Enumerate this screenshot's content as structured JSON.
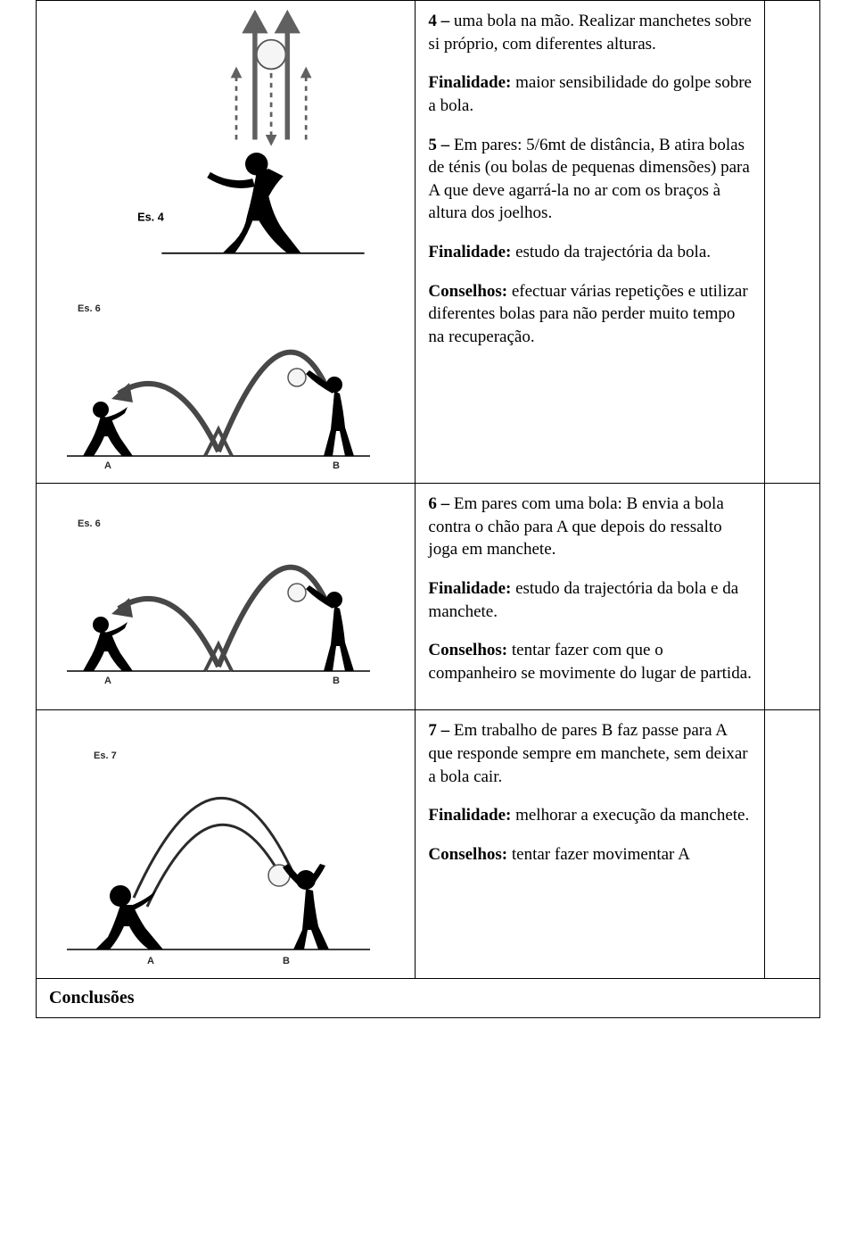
{
  "rows": [
    {
      "figures": [
        {
          "label": "Es. 4",
          "kind": "single-arrows"
        },
        {
          "label": "Es. 6",
          "kind": "pair-bounce"
        }
      ],
      "paragraphs": [
        {
          "bold": "4 –",
          "rest": " uma bola na mão. Realizar manchetes sobre si próprio, com diferentes alturas."
        },
        {
          "bold": "Finalidade:",
          "rest": " maior sensibilidade do golpe sobre a bola."
        },
        {
          "bold": "5 –",
          "rest": " Em pares: 5/6mt de distância, B atira bolas de ténis (ou bolas de pequenas dimensões) para A que deve agarrá-la no ar com os braços à altura dos joelhos."
        },
        {
          "bold": "Finalidade:",
          "rest": " estudo da trajectória da bola."
        },
        {
          "bold": "Conselhos:",
          "rest": " efectuar várias repetições e utilizar diferentes bolas para não perder muito tempo na recuperação."
        }
      ]
    },
    {
      "figures": [
        {
          "label": "Es. 6",
          "kind": "pair-bounce"
        }
      ],
      "paragraphs": [
        {
          "bold": "6 –",
          "rest": " Em pares com uma bola: B envia a bola contra o chão para A que depois do ressalto joga em manchete."
        },
        {
          "bold": "Finalidade:",
          "rest": " estudo da trajectória da bola e da manchete."
        },
        {
          "bold": "Conselhos:",
          "rest": " tentar fazer com que o companheiro se movimente do lugar de partida."
        }
      ]
    },
    {
      "figures": [
        {
          "label": "Es. 7",
          "kind": "pair-pass"
        }
      ],
      "paragraphs": [
        {
          "bold": "7 –",
          "rest": " Em trabalho de pares B faz passe para A que responde sempre em manchete, sem deixar a bola cair."
        },
        {
          "bold": "Finalidade:",
          "rest": " melhorar a execução da manchete."
        },
        {
          "bold": "Conselhos:",
          "rest": " tentar fazer movimentar A"
        }
      ]
    }
  ],
  "conclusions_label": "Conclusões",
  "colors": {
    "text": "#000000",
    "border": "#000000",
    "figure_stroke": "#3a3a3a",
    "figure_fill": "#000000",
    "ball_fill": "#f5f5f5",
    "arrow_gray": "#606060"
  }
}
